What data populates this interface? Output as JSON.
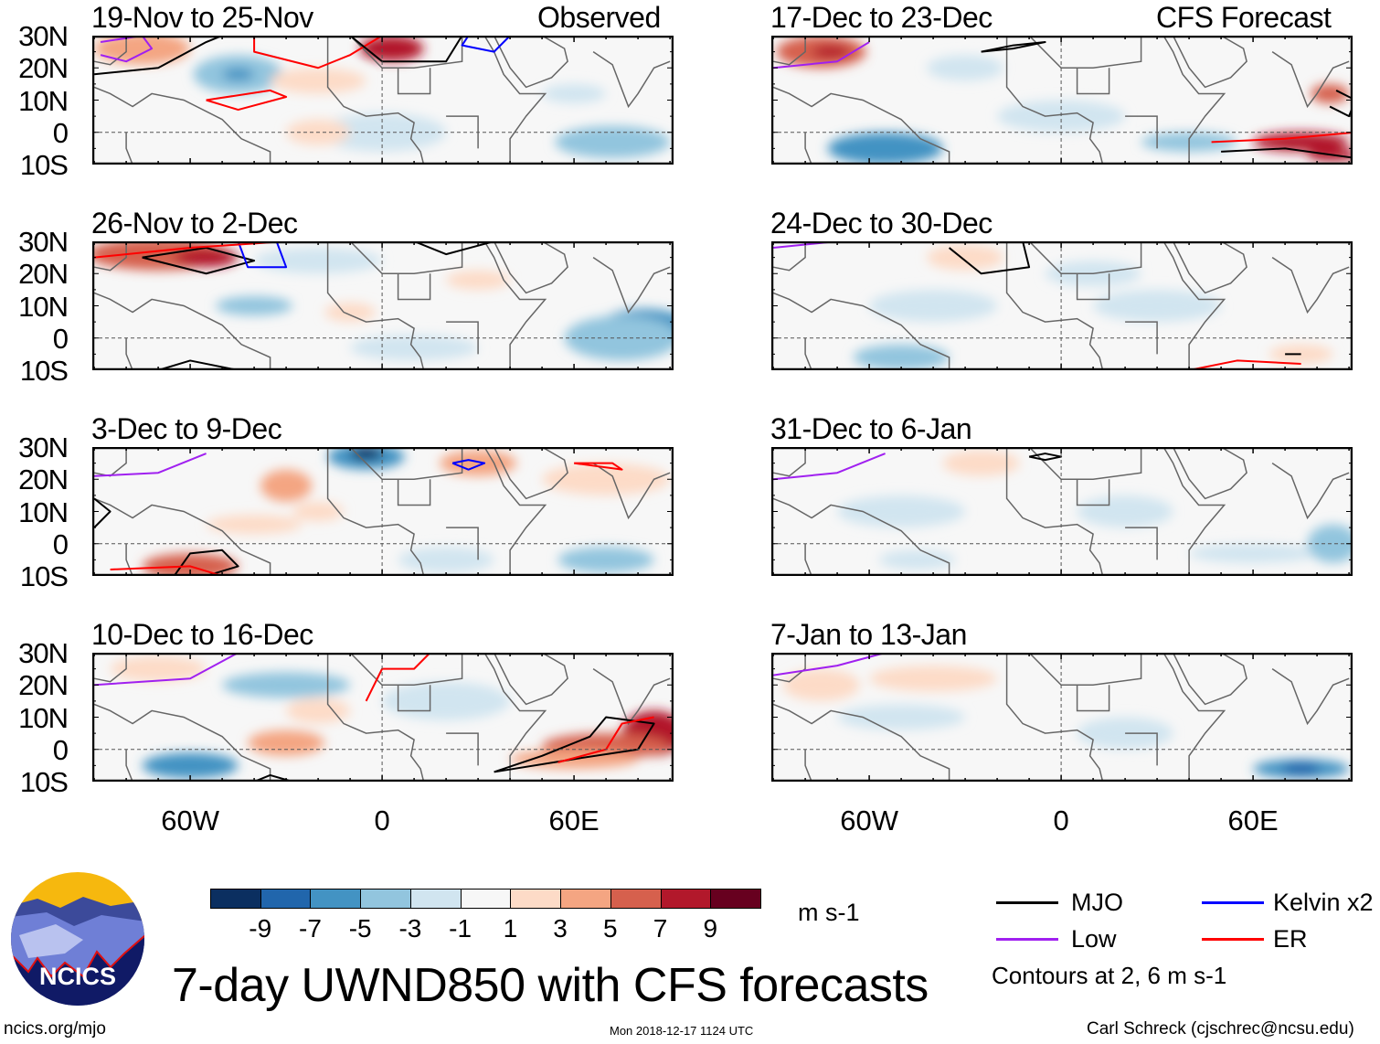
{
  "observed_label": "Observed",
  "forecast_label": "CFS Forecast",
  "panels_left": [
    {
      "title": "19-Nov to 25-Nov"
    },
    {
      "title": "26-Nov to 2-Dec"
    },
    {
      "title": "3-Dec to 9-Dec"
    },
    {
      "title": "10-Dec to 16-Dec"
    }
  ],
  "panels_right": [
    {
      "title": "17-Dec to 23-Dec"
    },
    {
      "title": "24-Dec to 30-Dec"
    },
    {
      "title": "31-Dec to 6-Jan"
    },
    {
      "title": "7-Jan to 13-Jan"
    }
  ],
  "lat_labels": [
    "30N",
    "20N",
    "10N",
    "0",
    "10S"
  ],
  "lon_labels": [
    "60W",
    "0",
    "60E"
  ],
  "colorbar": {
    "colors": [
      "#0b2f60",
      "#2166ac",
      "#4393c3",
      "#92c5de",
      "#d1e5f0",
      "#f7f7f7",
      "#fddbc7",
      "#f4a582",
      "#d6604d",
      "#b2182b",
      "#67001f"
    ],
    "labels": [
      "-9",
      "-7",
      "-5",
      "-3",
      "-1",
      "1",
      "3",
      "5",
      "7",
      "9"
    ],
    "units": "m s-1"
  },
  "legend": {
    "items": [
      {
        "label": "MJO",
        "color": "#000000"
      },
      {
        "label": "Kelvin x2",
        "color": "#0000ff"
      },
      {
        "label": "Low",
        "color": "#a020f0"
      },
      {
        "label": "ER",
        "color": "#ff0000"
      }
    ],
    "note": "Contours at 2, 6 m s-1"
  },
  "title": "7-day UWND850 with CFS forecasts",
  "logo_text": "NCICS",
  "footer": {
    "left": "ncics.org/mjo",
    "center": "Mon 2018-12-17 1124 UTC",
    "right": "Carl Schreck (cjschrec@ncsu.edu)"
  }
}
